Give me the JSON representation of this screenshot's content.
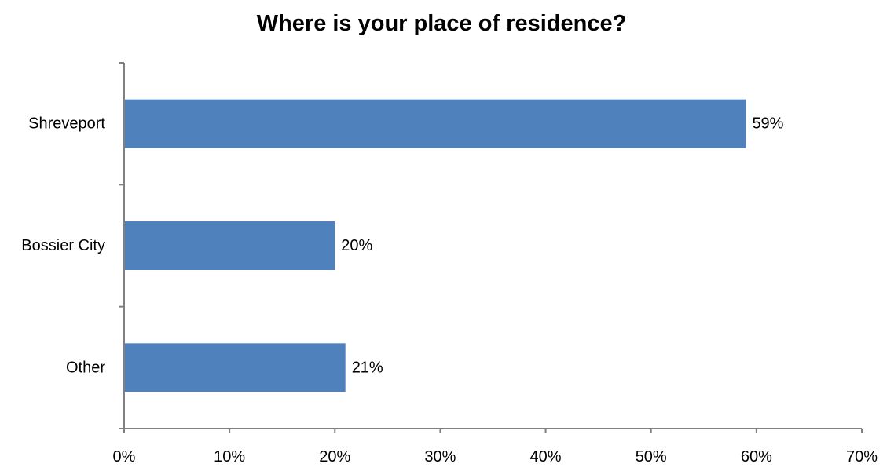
{
  "chart_data": {
    "type": "bar",
    "orientation": "horizontal",
    "title": "Where is your place of residence?",
    "categories": [
      "Shreveport",
      "Bossier City",
      "Other"
    ],
    "values": [
      59,
      20,
      21
    ],
    "data_labels": [
      "59%",
      "20%",
      "21%"
    ],
    "xlabel": "",
    "ylabel": "",
    "xlim": [
      0,
      70
    ],
    "x_ticks": [
      0,
      10,
      20,
      30,
      40,
      50,
      60,
      70
    ],
    "x_tick_labels": [
      "0%",
      "10%",
      "20%",
      "30%",
      "40%",
      "50%",
      "60%",
      "70%"
    ],
    "grid": false,
    "legend": "none",
    "bar_color": "#4F81BD",
    "axis_color": "#808080"
  }
}
